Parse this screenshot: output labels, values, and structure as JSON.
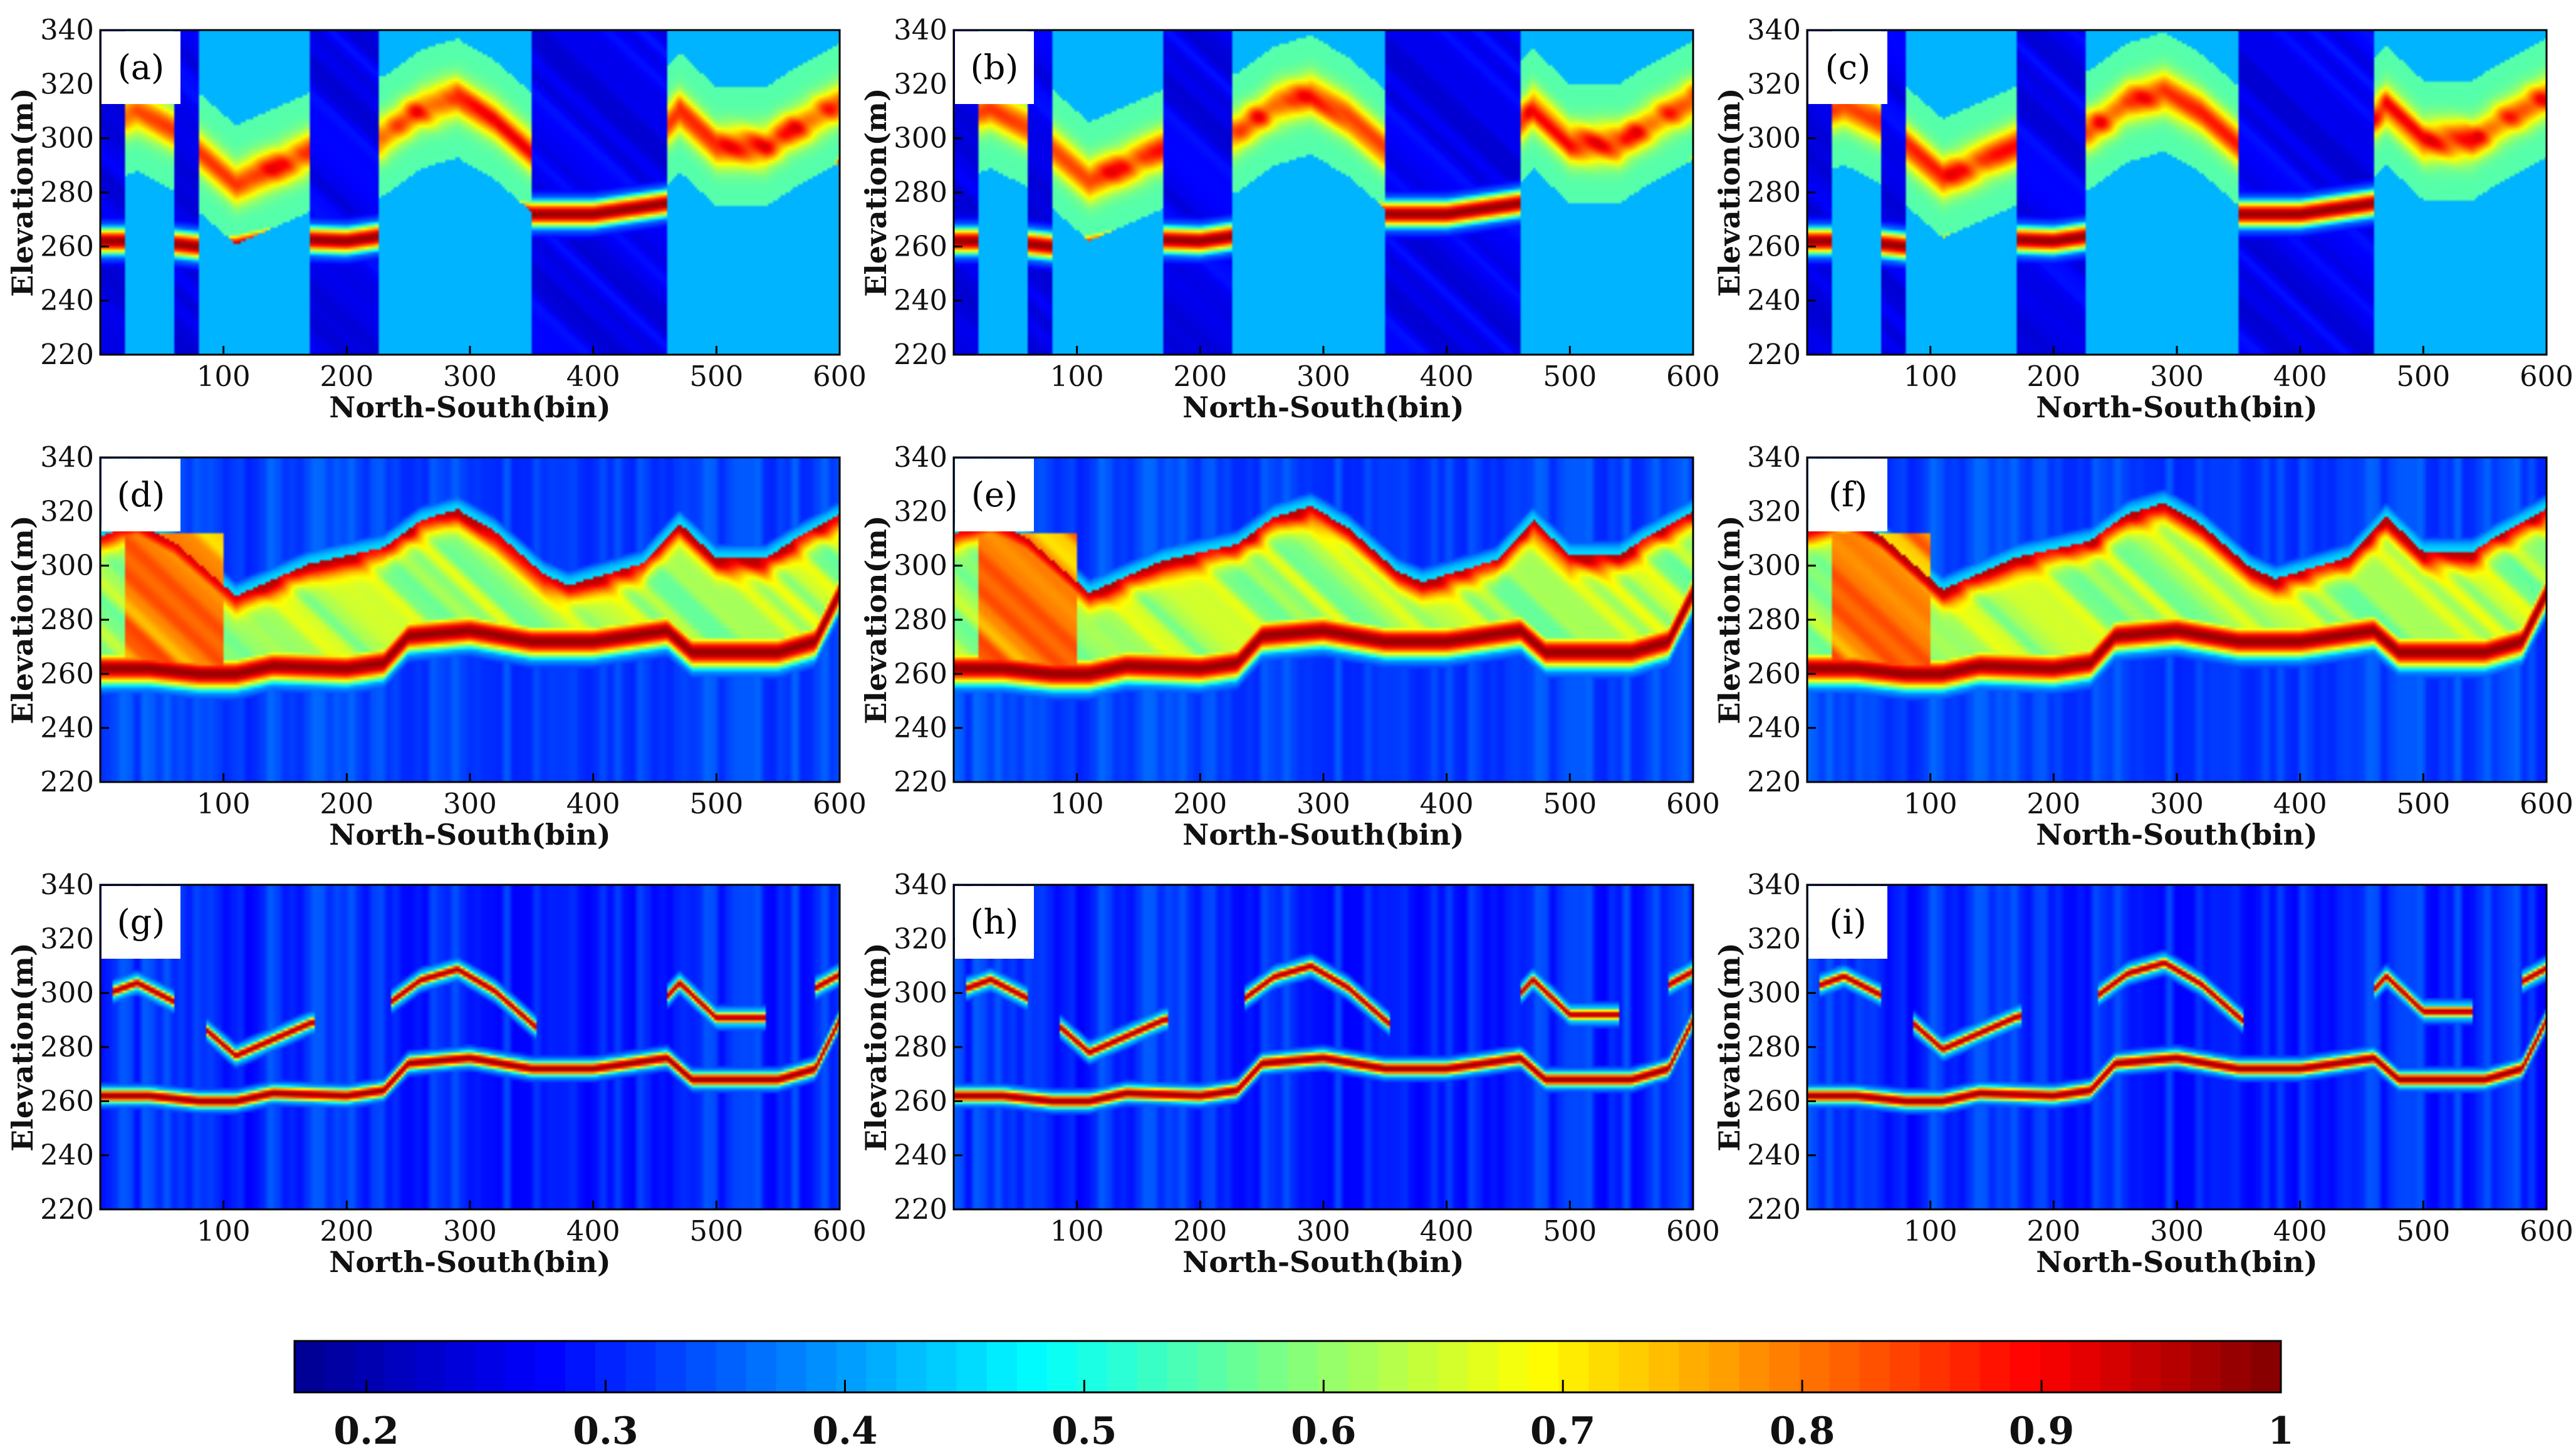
{
  "figure": {
    "colormap_stops": [
      "#00008f",
      "#0000ff",
      "#0080ff",
      "#00ffff",
      "#80ff80",
      "#ffff00",
      "#ff8000",
      "#ff0000",
      "#800000"
    ]
  },
  "chart_data": [
    {
      "type": "heatmap",
      "panel": "(a)",
      "label": "(a)",
      "group": "sparse",
      "variant": 0,
      "xlabel": "North-South(bin)",
      "ylabel": "Elevation(m)",
      "xlim": [
        0,
        600
      ],
      "ylim": [
        220,
        340
      ],
      "xticks": [
        100,
        200,
        300,
        400,
        500,
        600
      ],
      "yticks": [
        220,
        240,
        260,
        280,
        300,
        320,
        340
      ],
      "clim": [
        0.17,
        1
      ]
    },
    {
      "type": "heatmap",
      "panel": "(b)",
      "label": "(b)",
      "group": "sparse",
      "variant": 1,
      "xlabel": "North-South(bin)",
      "ylabel": "Elevation(m)",
      "xlim": [
        0,
        600
      ],
      "ylim": [
        220,
        340
      ],
      "xticks": [
        100,
        200,
        300,
        400,
        500,
        600
      ],
      "yticks": [
        220,
        240,
        260,
        280,
        300,
        320,
        340
      ],
      "clim": [
        0.17,
        1
      ]
    },
    {
      "type": "heatmap",
      "panel": "(c)",
      "label": "(c)",
      "group": "sparse",
      "variant": 2,
      "xlabel": "North-South(bin)",
      "ylabel": "Elevation(m)",
      "xlim": [
        0,
        600
      ],
      "ylim": [
        220,
        340
      ],
      "xticks": [
        100,
        200,
        300,
        400,
        500,
        600
      ],
      "yticks": [
        220,
        240,
        260,
        280,
        300,
        320,
        340
      ],
      "clim": [
        0.17,
        1
      ]
    },
    {
      "type": "heatmap",
      "panel": "(d)",
      "label": "(d)",
      "group": "broad",
      "variant": 0,
      "xlabel": "North-South(bin)",
      "ylabel": "Elevation(m)",
      "xlim": [
        0,
        600
      ],
      "ylim": [
        220,
        340
      ],
      "xticks": [
        100,
        200,
        300,
        400,
        500,
        600
      ],
      "yticks": [
        220,
        240,
        260,
        280,
        300,
        320,
        340
      ],
      "clim": [
        0.17,
        1
      ]
    },
    {
      "type": "heatmap",
      "panel": "(e)",
      "label": "(e)",
      "group": "broad",
      "variant": 1,
      "xlabel": "North-South(bin)",
      "ylabel": "Elevation(m)",
      "xlim": [
        0,
        600
      ],
      "ylim": [
        220,
        340
      ],
      "xticks": [
        100,
        200,
        300,
        400,
        500,
        600
      ],
      "yticks": [
        220,
        240,
        260,
        280,
        300,
        320,
        340
      ],
      "clim": [
        0.17,
        1
      ]
    },
    {
      "type": "heatmap",
      "panel": "(f)",
      "label": "(f)",
      "group": "broad",
      "variant": 2,
      "xlabel": "North-South(bin)",
      "ylabel": "Elevation(m)",
      "xlim": [
        0,
        600
      ],
      "ylim": [
        220,
        340
      ],
      "xticks": [
        100,
        200,
        300,
        400,
        500,
        600
      ],
      "yticks": [
        220,
        240,
        260,
        280,
        300,
        320,
        340
      ],
      "clim": [
        0.17,
        1
      ]
    },
    {
      "type": "heatmap",
      "panel": "(g)",
      "label": "(g)",
      "group": "sharp",
      "variant": 0,
      "xlabel": "North-South(bin)",
      "ylabel": "Elevation(m)",
      "xlim": [
        0,
        600
      ],
      "ylim": [
        220,
        340
      ],
      "xticks": [
        100,
        200,
        300,
        400,
        500,
        600
      ],
      "yticks": [
        220,
        240,
        260,
        280,
        300,
        320,
        340
      ],
      "clim": [
        0.17,
        1
      ]
    },
    {
      "type": "heatmap",
      "panel": "(h)",
      "label": "(h)",
      "group": "sharp",
      "variant": 1,
      "xlabel": "North-South(bin)",
      "ylabel": "Elevation(m)",
      "xlim": [
        0,
        600
      ],
      "ylim": [
        220,
        340
      ],
      "xticks": [
        100,
        200,
        300,
        400,
        500,
        600
      ],
      "yticks": [
        220,
        240,
        260,
        280,
        300,
        320,
        340
      ],
      "clim": [
        0.17,
        1
      ]
    },
    {
      "type": "heatmap",
      "panel": "(i)",
      "label": "(i)",
      "group": "sharp",
      "variant": 2,
      "xlabel": "North-South(bin)",
      "ylabel": "Elevation(m)",
      "xlim": [
        0,
        600
      ],
      "ylim": [
        220,
        340
      ],
      "xticks": [
        100,
        200,
        300,
        400,
        500,
        600
      ],
      "yticks": [
        220,
        240,
        260,
        280,
        300,
        320,
        340
      ],
      "clim": [
        0.17,
        1
      ]
    }
  ],
  "colorbar": {
    "min": 0.17,
    "max": 1,
    "ticks": [
      0.2,
      0.3,
      0.4,
      0.5,
      0.6,
      0.7,
      0.8,
      0.9,
      1
    ],
    "tick_labels": [
      "0.2",
      "0.3",
      "0.4",
      "0.5",
      "0.6",
      "0.7",
      "0.8",
      "0.9",
      "1"
    ]
  }
}
